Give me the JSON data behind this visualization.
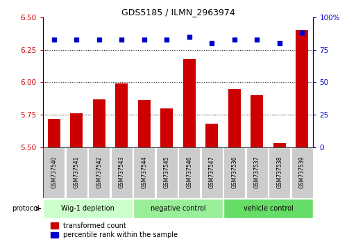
{
  "title": "GDS5185 / ILMN_2963974",
  "samples": [
    "GSM737540",
    "GSM737541",
    "GSM737542",
    "GSM737543",
    "GSM737544",
    "GSM737545",
    "GSM737546",
    "GSM737547",
    "GSM737536",
    "GSM737537",
    "GSM737538",
    "GSM737539"
  ],
  "red_values": [
    5.72,
    5.76,
    5.87,
    5.99,
    5.86,
    5.8,
    6.18,
    5.68,
    5.95,
    5.9,
    5.53,
    6.4
  ],
  "blue_values": [
    83,
    83,
    83,
    83,
    83,
    83,
    85,
    80,
    83,
    83,
    80,
    88
  ],
  "groups": [
    {
      "label": "Wig-1 depletion",
      "start": 0,
      "end": 4
    },
    {
      "label": "negative control",
      "start": 4,
      "end": 8
    },
    {
      "label": "vehicle control",
      "start": 8,
      "end": 12
    }
  ],
  "group_colors": [
    "#ccffcc",
    "#99ee99",
    "#66dd66"
  ],
  "ylim_left": [
    5.5,
    6.5
  ],
  "ylim_right": [
    0,
    100
  ],
  "yticks_left": [
    5.5,
    5.75,
    6.0,
    6.25,
    6.5
  ],
  "yticks_right": [
    0,
    25,
    50,
    75,
    100
  ],
  "ytick_labels_right": [
    "0",
    "25",
    "50",
    "75",
    "100%"
  ],
  "bar_color": "#cc0000",
  "dot_color": "#0000cc",
  "sample_box_color": "#cccccc",
  "protocol_label": "protocol",
  "legend_red": "transformed count",
  "legend_blue": "percentile rank within the sample",
  "figsize": [
    5.13,
    3.54
  ],
  "dpi": 100
}
